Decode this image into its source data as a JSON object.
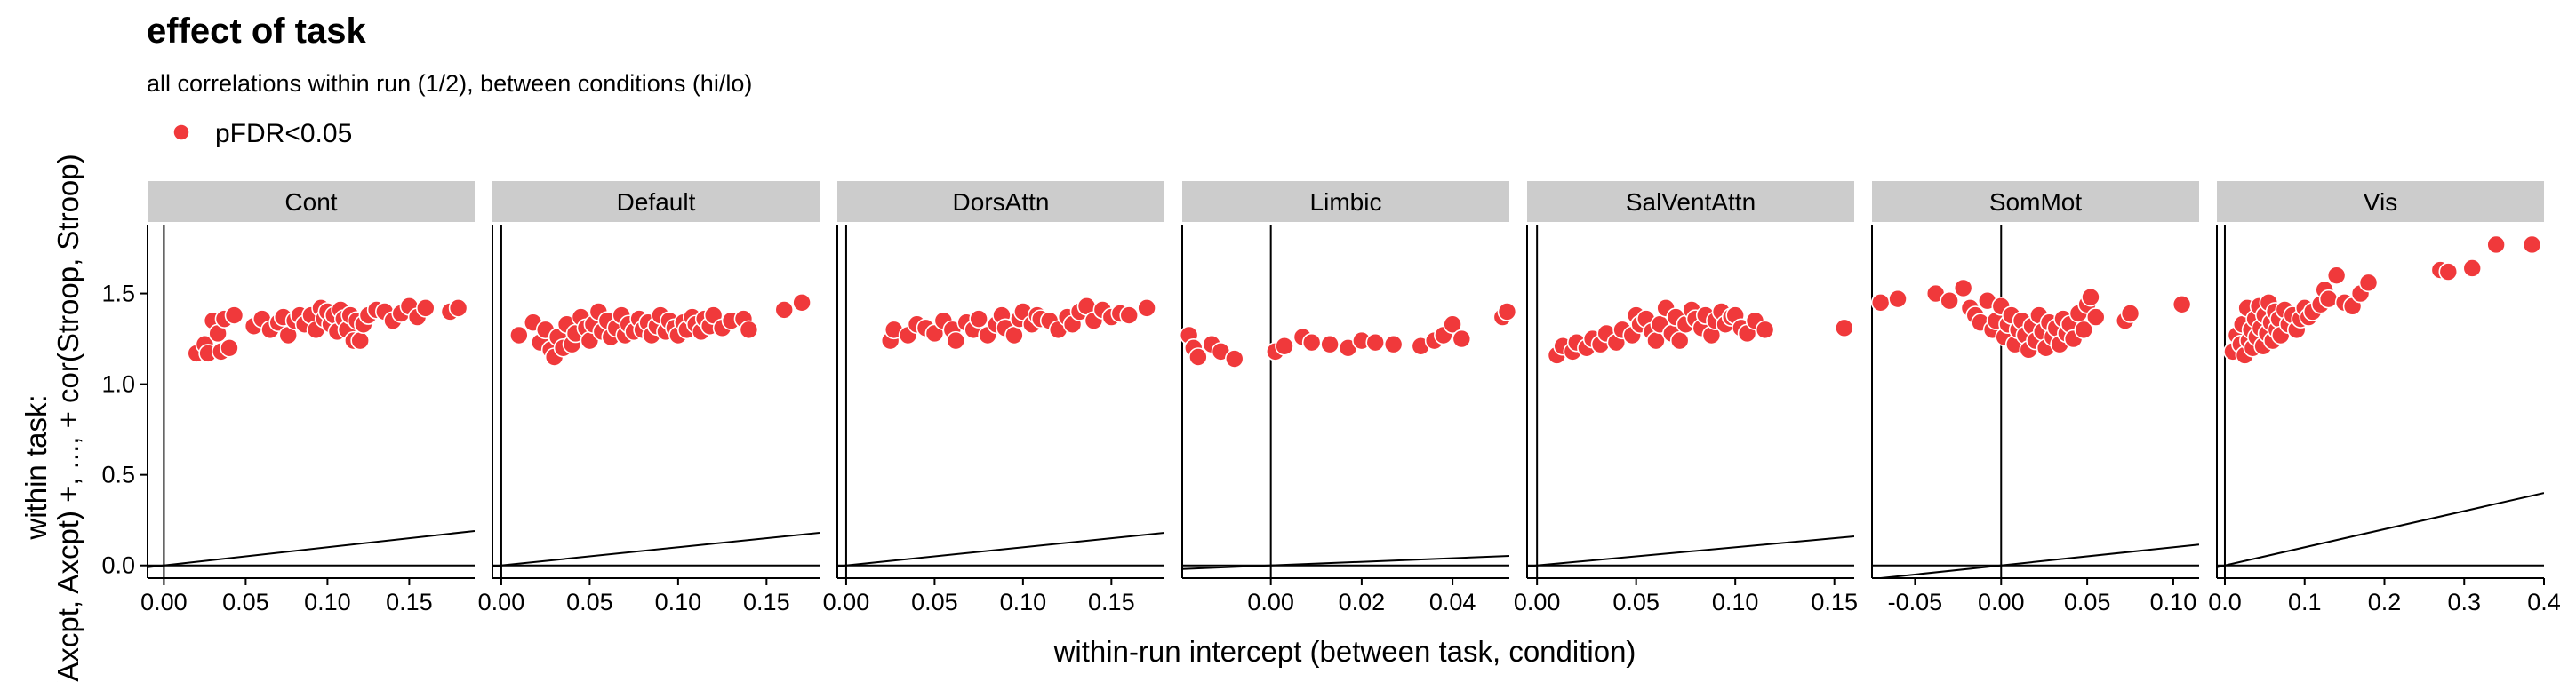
{
  "header": {
    "title": "effect of task",
    "subtitle": "all correlations within run (1/2), between conditions (hi/lo)"
  },
  "legend": {
    "label": "pFDR<0.05",
    "color": "#f0393b"
  },
  "axes": {
    "xlabel": "within-run intercept (between task, condition)",
    "ylabel_line1": "within task:",
    "ylabel_line2": "(Axcpt, Axcpt) +, ..., + cor(Stroop, Stroop)"
  },
  "colors": {
    "point": "#f0393b",
    "strip": "#cccccc",
    "line": "#000000"
  },
  "chart_data": {
    "type": "scatter",
    "facet_by": "network",
    "shared_y": {
      "ylim": [
        -0.07,
        1.88
      ],
      "ticks": [
        "0.0",
        "0.5",
        "1.0",
        "1.5"
      ],
      "tick_values": [
        0,
        0.5,
        1.0,
        1.5
      ]
    },
    "reference_lines": [
      "horizontal line at y = 0",
      "vertical line at x = 0",
      "identity line y = x"
    ],
    "legend_position": "top-left",
    "grid": false,
    "facets": [
      {
        "name": "Cont",
        "xlim": [
          -0.01,
          0.19
        ],
        "xticks": [
          "0.00",
          "0.05",
          "0.10",
          "0.15"
        ],
        "xtick_values": [
          0,
          0.05,
          0.1,
          0.15
        ],
        "points": [
          [
            0.02,
            1.17
          ],
          [
            0.025,
            1.22
          ],
          [
            0.027,
            1.17
          ],
          [
            0.03,
            1.35
          ],
          [
            0.033,
            1.28
          ],
          [
            0.035,
            1.18
          ],
          [
            0.037,
            1.36
          ],
          [
            0.04,
            1.2
          ],
          [
            0.043,
            1.38
          ],
          [
            0.055,
            1.32
          ],
          [
            0.06,
            1.36
          ],
          [
            0.065,
            1.3
          ],
          [
            0.07,
            1.34
          ],
          [
            0.073,
            1.37
          ],
          [
            0.076,
            1.27
          ],
          [
            0.08,
            1.35
          ],
          [
            0.083,
            1.38
          ],
          [
            0.086,
            1.33
          ],
          [
            0.09,
            1.38
          ],
          [
            0.093,
            1.3
          ],
          [
            0.096,
            1.42
          ],
          [
            0.098,
            1.36
          ],
          [
            0.1,
            1.4
          ],
          [
            0.102,
            1.33
          ],
          [
            0.104,
            1.38
          ],
          [
            0.106,
            1.29
          ],
          [
            0.108,
            1.41
          ],
          [
            0.11,
            1.36
          ],
          [
            0.112,
            1.3
          ],
          [
            0.114,
            1.38
          ],
          [
            0.116,
            1.24
          ],
          [
            0.118,
            1.35
          ],
          [
            0.12,
            1.24
          ],
          [
            0.122,
            1.33
          ],
          [
            0.125,
            1.38
          ],
          [
            0.13,
            1.41
          ],
          [
            0.135,
            1.4
          ],
          [
            0.14,
            1.35
          ],
          [
            0.145,
            1.39
          ],
          [
            0.15,
            1.43
          ],
          [
            0.155,
            1.37
          ],
          [
            0.16,
            1.42
          ],
          [
            0.175,
            1.4
          ],
          [
            0.18,
            1.42
          ]
        ]
      },
      {
        "name": "Default",
        "xlim": [
          -0.005,
          0.18
        ],
        "xticks": [
          "0.00",
          "0.05",
          "0.10",
          "0.15"
        ],
        "xtick_values": [
          0,
          0.05,
          0.1,
          0.15
        ],
        "points": [
          [
            0.01,
            1.27
          ],
          [
            0.018,
            1.34
          ],
          [
            0.022,
            1.23
          ],
          [
            0.025,
            1.3
          ],
          [
            0.028,
            1.19
          ],
          [
            0.03,
            1.15
          ],
          [
            0.032,
            1.26
          ],
          [
            0.035,
            1.2
          ],
          [
            0.037,
            1.33
          ],
          [
            0.04,
            1.22
          ],
          [
            0.042,
            1.28
          ],
          [
            0.045,
            1.37
          ],
          [
            0.048,
            1.31
          ],
          [
            0.05,
            1.24
          ],
          [
            0.052,
            1.33
          ],
          [
            0.055,
            1.4
          ],
          [
            0.057,
            1.29
          ],
          [
            0.06,
            1.35
          ],
          [
            0.062,
            1.26
          ],
          [
            0.065,
            1.31
          ],
          [
            0.068,
            1.38
          ],
          [
            0.07,
            1.27
          ],
          [
            0.072,
            1.33
          ],
          [
            0.075,
            1.29
          ],
          [
            0.078,
            1.36
          ],
          [
            0.08,
            1.3
          ],
          [
            0.083,
            1.34
          ],
          [
            0.085,
            1.27
          ],
          [
            0.088,
            1.32
          ],
          [
            0.09,
            1.38
          ],
          [
            0.093,
            1.29
          ],
          [
            0.095,
            1.35
          ],
          [
            0.098,
            1.31
          ],
          [
            0.1,
            1.27
          ],
          [
            0.103,
            1.34
          ],
          [
            0.105,
            1.3
          ],
          [
            0.108,
            1.37
          ],
          [
            0.11,
            1.33
          ],
          [
            0.113,
            1.29
          ],
          [
            0.115,
            1.36
          ],
          [
            0.118,
            1.32
          ],
          [
            0.12,
            1.38
          ],
          [
            0.125,
            1.31
          ],
          [
            0.13,
            1.35
          ],
          [
            0.137,
            1.36
          ],
          [
            0.14,
            1.3
          ],
          [
            0.16,
            1.41
          ],
          [
            0.17,
            1.45
          ]
        ]
      },
      {
        "name": "DorsAttn",
        "xlim": [
          -0.005,
          0.18
        ],
        "xticks": [
          "0.00",
          "0.05",
          "0.10",
          "0.15"
        ],
        "xtick_values": [
          0,
          0.05,
          0.1,
          0.15
        ],
        "points": [
          [
            0.025,
            1.24
          ],
          [
            0.027,
            1.3
          ],
          [
            0.035,
            1.27
          ],
          [
            0.04,
            1.33
          ],
          [
            0.045,
            1.31
          ],
          [
            0.05,
            1.28
          ],
          [
            0.055,
            1.35
          ],
          [
            0.06,
            1.3
          ],
          [
            0.062,
            1.24
          ],
          [
            0.068,
            1.34
          ],
          [
            0.072,
            1.3
          ],
          [
            0.075,
            1.36
          ],
          [
            0.08,
            1.27
          ],
          [
            0.085,
            1.33
          ],
          [
            0.088,
            1.38
          ],
          [
            0.09,
            1.31
          ],
          [
            0.095,
            1.27
          ],
          [
            0.098,
            1.36
          ],
          [
            0.1,
            1.4
          ],
          [
            0.105,
            1.33
          ],
          [
            0.108,
            1.38
          ],
          [
            0.11,
            1.36
          ],
          [
            0.115,
            1.35
          ],
          [
            0.12,
            1.3
          ],
          [
            0.125,
            1.37
          ],
          [
            0.128,
            1.33
          ],
          [
            0.132,
            1.4
          ],
          [
            0.136,
            1.43
          ],
          [
            0.14,
            1.35
          ],
          [
            0.145,
            1.41
          ],
          [
            0.15,
            1.37
          ],
          [
            0.155,
            1.39
          ],
          [
            0.16,
            1.38
          ],
          [
            0.17,
            1.42
          ]
        ]
      },
      {
        "name": "Limbic",
        "xlim": [
          -0.0195,
          0.0525
        ],
        "xticks": [
          "0.00",
          "0.02",
          "0.04"
        ],
        "xtick_values": [
          0,
          0.02,
          0.04
        ],
        "points": [
          [
            -0.018,
            1.27
          ],
          [
            -0.017,
            1.2
          ],
          [
            -0.016,
            1.15
          ],
          [
            -0.013,
            1.22
          ],
          [
            -0.011,
            1.18
          ],
          [
            -0.008,
            1.14
          ],
          [
            0.001,
            1.18
          ],
          [
            0.003,
            1.21
          ],
          [
            0.007,
            1.26
          ],
          [
            0.009,
            1.23
          ],
          [
            0.013,
            1.22
          ],
          [
            0.017,
            1.2
          ],
          [
            0.02,
            1.24
          ],
          [
            0.023,
            1.23
          ],
          [
            0.027,
            1.22
          ],
          [
            0.033,
            1.21
          ],
          [
            0.036,
            1.24
          ],
          [
            0.038,
            1.27
          ],
          [
            0.04,
            1.33
          ],
          [
            0.042,
            1.25
          ],
          [
            0.051,
            1.37
          ],
          [
            0.052,
            1.4
          ]
        ]
      },
      {
        "name": "SalVentAttn",
        "xlim": [
          -0.005,
          0.16
        ],
        "xticks": [
          "0.00",
          "0.05",
          "0.10",
          "0.15"
        ],
        "xtick_values": [
          0,
          0.05,
          0.1,
          0.15
        ],
        "points": [
          [
            0.01,
            1.16
          ],
          [
            0.013,
            1.21
          ],
          [
            0.018,
            1.18
          ],
          [
            0.02,
            1.23
          ],
          [
            0.025,
            1.2
          ],
          [
            0.028,
            1.25
          ],
          [
            0.032,
            1.22
          ],
          [
            0.035,
            1.28
          ],
          [
            0.04,
            1.23
          ],
          [
            0.043,
            1.3
          ],
          [
            0.048,
            1.27
          ],
          [
            0.05,
            1.38
          ],
          [
            0.052,
            1.33
          ],
          [
            0.055,
            1.36
          ],
          [
            0.058,
            1.29
          ],
          [
            0.06,
            1.24
          ],
          [
            0.062,
            1.33
          ],
          [
            0.065,
            1.42
          ],
          [
            0.068,
            1.28
          ],
          [
            0.07,
            1.37
          ],
          [
            0.072,
            1.24
          ],
          [
            0.075,
            1.33
          ],
          [
            0.078,
            1.41
          ],
          [
            0.08,
            1.36
          ],
          [
            0.083,
            1.31
          ],
          [
            0.085,
            1.38
          ],
          [
            0.088,
            1.27
          ],
          [
            0.09,
            1.35
          ],
          [
            0.093,
            1.4
          ],
          [
            0.095,
            1.33
          ],
          [
            0.098,
            1.37
          ],
          [
            0.1,
            1.38
          ],
          [
            0.103,
            1.31
          ],
          [
            0.106,
            1.28
          ],
          [
            0.11,
            1.35
          ],
          [
            0.115,
            1.3
          ],
          [
            0.155,
            1.31
          ]
        ]
      },
      {
        "name": "SomMot",
        "xlim": [
          -0.075,
          0.115
        ],
        "xticks": [
          "-0.05",
          "0.00",
          "0.05",
          "0.10"
        ],
        "xtick_values": [
          -0.05,
          0,
          0.05,
          0.1
        ],
        "points": [
          [
            -0.07,
            1.45
          ],
          [
            -0.06,
            1.47
          ],
          [
            -0.038,
            1.5
          ],
          [
            -0.03,
            1.46
          ],
          [
            -0.022,
            1.53
          ],
          [
            -0.018,
            1.42
          ],
          [
            -0.015,
            1.38
          ],
          [
            -0.012,
            1.34
          ],
          [
            -0.008,
            1.46
          ],
          [
            -0.005,
            1.3
          ],
          [
            -0.003,
            1.35
          ],
          [
            0.0,
            1.43
          ],
          [
            0.002,
            1.26
          ],
          [
            0.004,
            1.33
          ],
          [
            0.006,
            1.38
          ],
          [
            0.008,
            1.22
          ],
          [
            0.01,
            1.3
          ],
          [
            0.012,
            1.35
          ],
          [
            0.014,
            1.27
          ],
          [
            0.016,
            1.19
          ],
          [
            0.018,
            1.32
          ],
          [
            0.02,
            1.24
          ],
          [
            0.022,
            1.38
          ],
          [
            0.024,
            1.29
          ],
          [
            0.026,
            1.2
          ],
          [
            0.028,
            1.34
          ],
          [
            0.03,
            1.26
          ],
          [
            0.032,
            1.31
          ],
          [
            0.034,
            1.22
          ],
          [
            0.036,
            1.36
          ],
          [
            0.038,
            1.28
          ],
          [
            0.04,
            1.33
          ],
          [
            0.042,
            1.25
          ],
          [
            0.045,
            1.39
          ],
          [
            0.048,
            1.3
          ],
          [
            0.05,
            1.44
          ],
          [
            0.052,
            1.48
          ],
          [
            0.055,
            1.37
          ],
          [
            0.072,
            1.35
          ],
          [
            0.075,
            1.39
          ],
          [
            0.105,
            1.44
          ]
        ]
      },
      {
        "name": "Vis",
        "xlim": [
          -0.01,
          0.4
        ],
        "xticks": [
          "0.0",
          "0.1",
          "0.2",
          "0.3",
          "0.4"
        ],
        "xtick_values": [
          0,
          0.1,
          0.2,
          0.3,
          0.4
        ],
        "points": [
          [
            0.01,
            1.18
          ],
          [
            0.015,
            1.27
          ],
          [
            0.02,
            1.22
          ],
          [
            0.022,
            1.33
          ],
          [
            0.025,
            1.16
          ],
          [
            0.028,
            1.42
          ],
          [
            0.03,
            1.24
          ],
          [
            0.033,
            1.3
          ],
          [
            0.035,
            1.2
          ],
          [
            0.038,
            1.36
          ],
          [
            0.04,
            1.26
          ],
          [
            0.043,
            1.43
          ],
          [
            0.045,
            1.31
          ],
          [
            0.048,
            1.21
          ],
          [
            0.05,
            1.38
          ],
          [
            0.053,
            1.28
          ],
          [
            0.055,
            1.45
          ],
          [
            0.058,
            1.34
          ],
          [
            0.06,
            1.24
          ],
          [
            0.063,
            1.4
          ],
          [
            0.065,
            1.3
          ],
          [
            0.068,
            1.36
          ],
          [
            0.07,
            1.27
          ],
          [
            0.075,
            1.41
          ],
          [
            0.08,
            1.33
          ],
          [
            0.085,
            1.38
          ],
          [
            0.09,
            1.3
          ],
          [
            0.095,
            1.36
          ],
          [
            0.1,
            1.42
          ],
          [
            0.105,
            1.37
          ],
          [
            0.11,
            1.4
          ],
          [
            0.12,
            1.44
          ],
          [
            0.125,
            1.52
          ],
          [
            0.13,
            1.47
          ],
          [
            0.14,
            1.6
          ],
          [
            0.15,
            1.45
          ],
          [
            0.16,
            1.43
          ],
          [
            0.17,
            1.5
          ],
          [
            0.18,
            1.56
          ],
          [
            0.27,
            1.63
          ],
          [
            0.28,
            1.62
          ],
          [
            0.31,
            1.64
          ],
          [
            0.34,
            1.77
          ],
          [
            0.385,
            1.77
          ]
        ]
      }
    ]
  }
}
